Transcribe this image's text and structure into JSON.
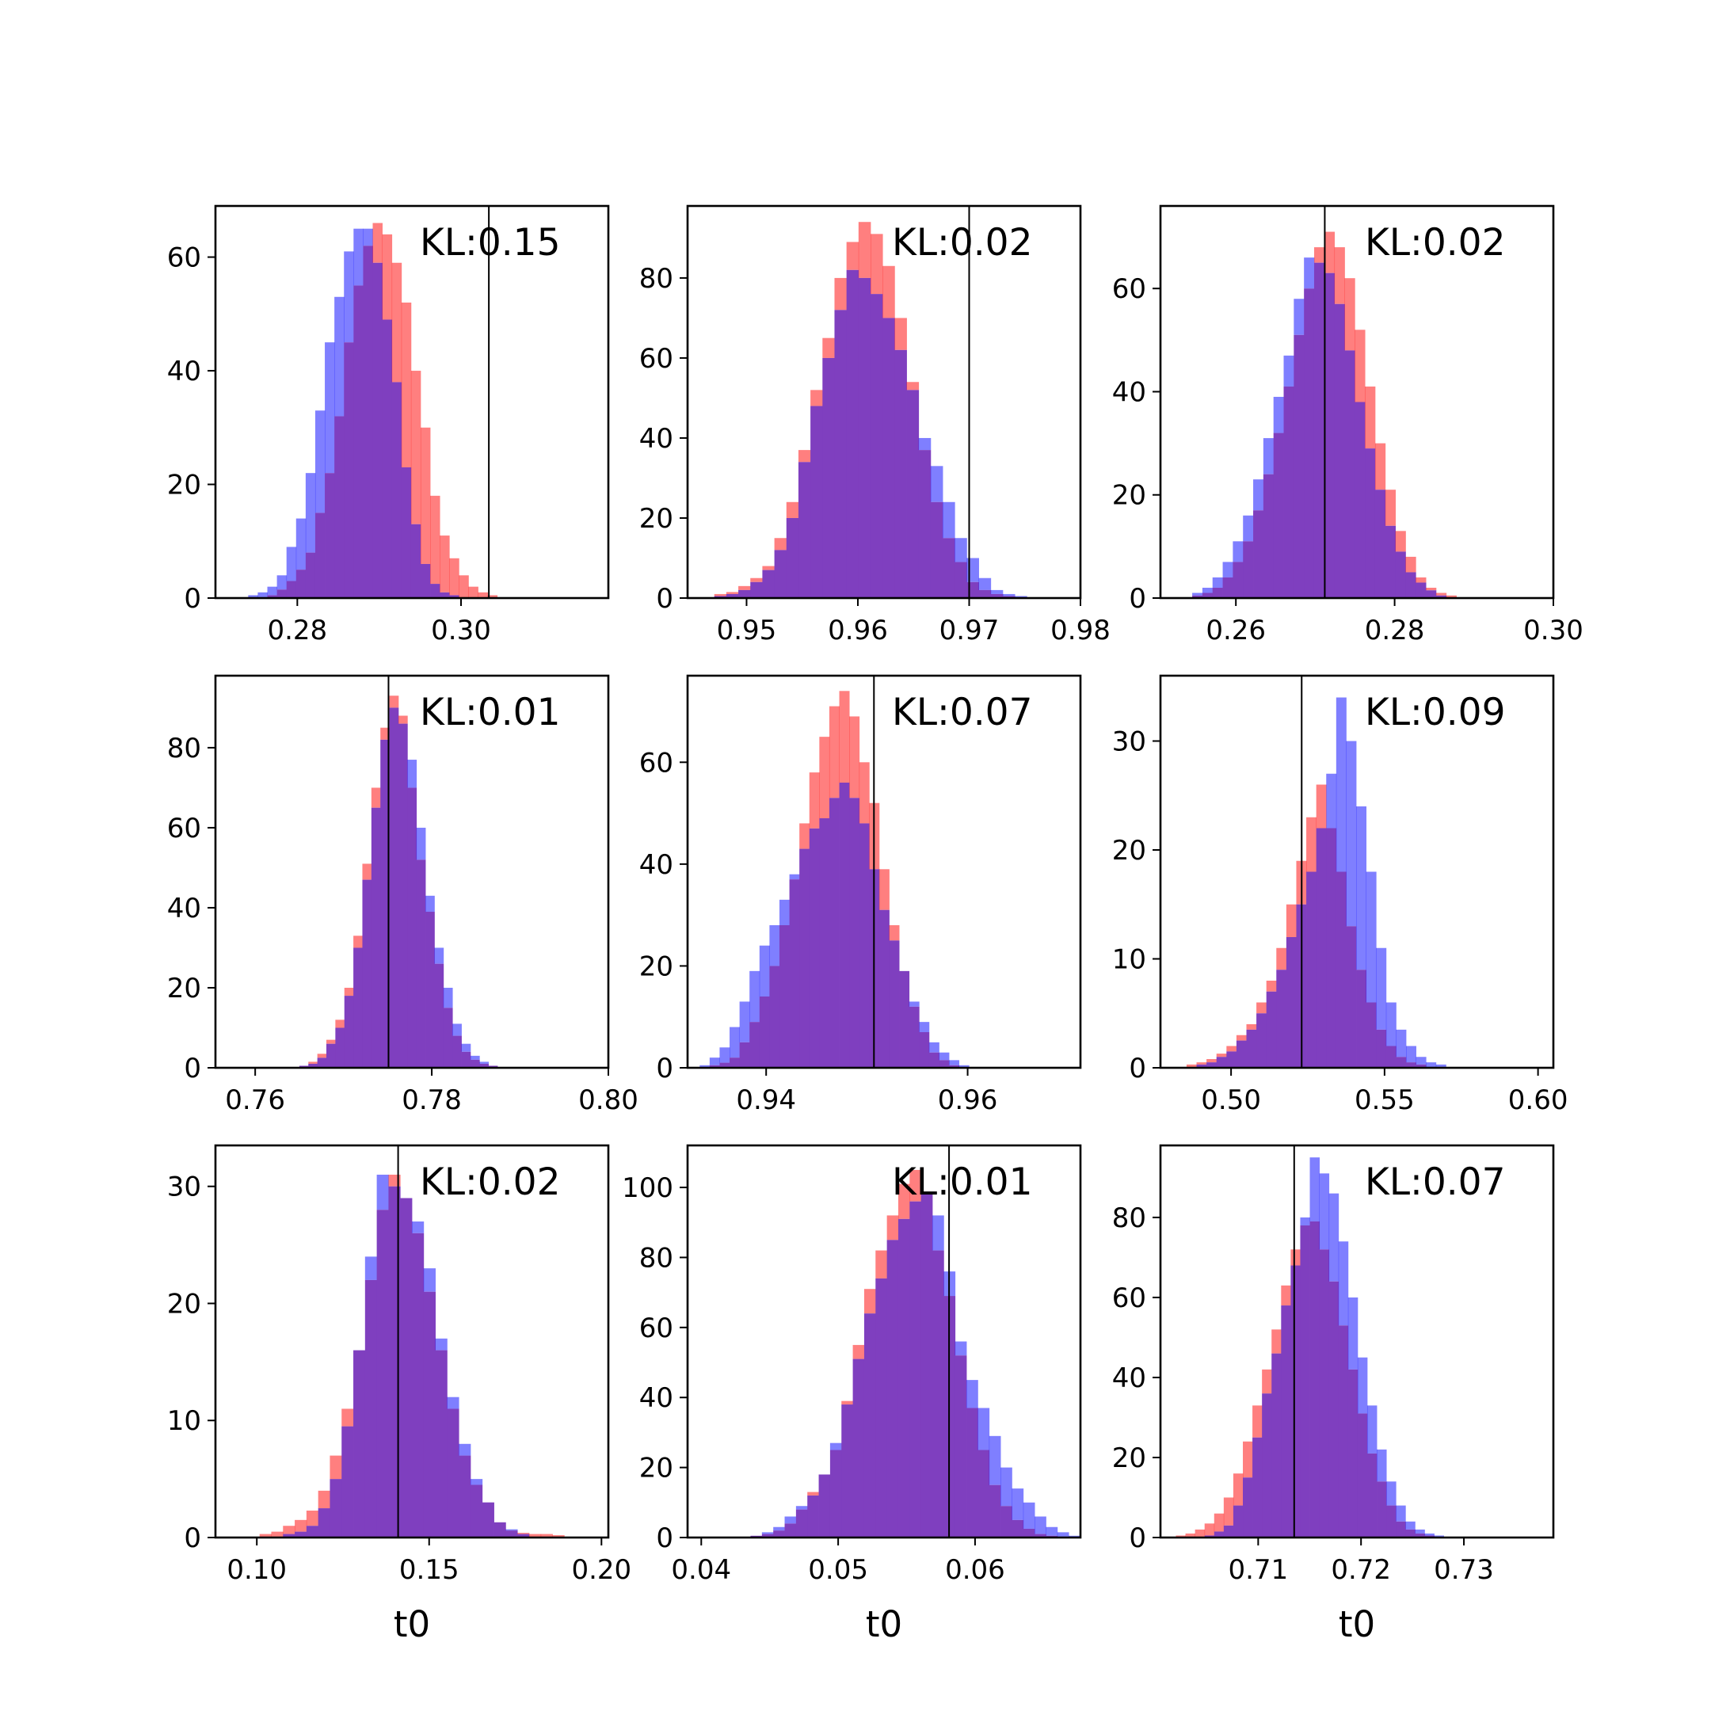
{
  "colors": {
    "red": "#ff0000",
    "blue": "#0000ff",
    "overlap": "#7f3fbf",
    "marker": "#000000",
    "frame": "#000000"
  },
  "chart_data": [
    {
      "type": "histogram",
      "kl_label": "KL:0.15",
      "xlabel": "",
      "xlim": [
        0.27,
        0.318
      ],
      "ylim": [
        0,
        69
      ],
      "xticks": [
        0.28,
        0.3
      ],
      "xtick_labels": [
        "0.28",
        "0.30"
      ],
      "yticks": [
        0,
        20,
        40,
        60
      ],
      "ytick_labels": [
        "0",
        "20",
        "40",
        "60"
      ],
      "bin_start": 0.274,
      "bin_width": 0.00117,
      "marker_x": 0.3034,
      "series": [
        {
          "color": "red",
          "values": [
            0,
            0,
            0.5,
            1.5,
            3,
            5,
            8,
            15,
            22,
            32,
            45,
            55,
            62,
            66,
            64,
            59,
            52,
            40,
            30,
            18,
            11,
            7,
            4,
            2,
            1,
            0.5
          ]
        },
        {
          "color": "blue",
          "values": [
            0.5,
            1,
            2,
            4,
            9,
            14,
            22,
            33,
            45,
            53,
            61,
            65,
            65,
            59,
            49,
            38,
            23,
            13,
            6,
            2.5,
            1,
            0.5,
            0,
            0,
            0,
            0
          ]
        }
      ]
    },
    {
      "type": "histogram",
      "kl_label": "KL:0.02",
      "xlabel": "",
      "xlim": [
        0.9447,
        0.98
      ],
      "ylim": [
        0,
        98
      ],
      "xticks": [
        0.95,
        0.96,
        0.97,
        0.98
      ],
      "xtick_labels": [
        "0.95",
        "0.96",
        "0.97",
        "0.98"
      ],
      "yticks": [
        0,
        20,
        40,
        60,
        80
      ],
      "ytick_labels": [
        "0",
        "20",
        "40",
        "60",
        "80"
      ],
      "bin_start": 0.9471,
      "bin_width": 0.00108,
      "marker_x": 0.97,
      "series": [
        {
          "color": "red",
          "values": [
            1,
            1.5,
            3,
            5,
            8,
            15,
            24,
            37,
            52,
            65,
            80,
            89,
            94,
            91,
            83,
            70,
            54,
            37,
            24,
            15,
            9,
            4,
            2,
            1,
            0.5,
            0,
            0,
            0
          ]
        },
        {
          "color": "blue",
          "values": [
            0.5,
            1,
            2,
            4,
            7,
            12,
            20,
            34,
            48,
            60,
            72,
            82,
            80,
            76,
            70,
            62,
            52,
            40,
            33,
            24,
            15,
            10,
            5,
            2,
            1,
            0.5,
            0,
            0
          ]
        }
      ]
    },
    {
      "type": "histogram",
      "kl_label": "KL:0.02",
      "xlabel": "",
      "xlim": [
        0.2505,
        0.3
      ],
      "ylim": [
        0,
        76
      ],
      "xticks": [
        0.26,
        0.28,
        0.3
      ],
      "xtick_labels": [
        "0.26",
        "0.28",
        "0.30"
      ],
      "yticks": [
        0,
        20,
        40,
        60
      ],
      "ytick_labels": [
        "0",
        "20",
        "40",
        "60"
      ],
      "bin_start": 0.2545,
      "bin_width": 0.00128,
      "marker_x": 0.2712,
      "series": [
        {
          "color": "red",
          "values": [
            0.5,
            1,
            2,
            4,
            7,
            11,
            17,
            24,
            32,
            41,
            51,
            60,
            68,
            71,
            68,
            62,
            52,
            41,
            30,
            21,
            13,
            8,
            4,
            2,
            1,
            0.5,
            0
          ]
        },
        {
          "color": "blue",
          "values": [
            1,
            2,
            4,
            7,
            11,
            16,
            23,
            31,
            39,
            47,
            58,
            66,
            65,
            63,
            57,
            48,
            38,
            29,
            21,
            14,
            9,
            5,
            3,
            1.5,
            0.5,
            0,
            0
          ]
        }
      ]
    },
    {
      "type": "histogram",
      "kl_label": "KL:0.01",
      "xlabel": "",
      "xlim": [
        0.7555,
        0.8
      ],
      "ylim": [
        0,
        98
      ],
      "xticks": [
        0.76,
        0.78,
        0.8
      ],
      "xtick_labels": [
        "0.76",
        "0.78",
        "0.80"
      ],
      "yticks": [
        0,
        20,
        40,
        60,
        80
      ],
      "ytick_labels": [
        "0",
        "20",
        "40",
        "60",
        "80"
      ],
      "bin_start": 0.765,
      "bin_width": 0.00102,
      "marker_x": 0.7751,
      "series": [
        {
          "color": "red",
          "values": [
            0.5,
            1.5,
            3.5,
            7,
            12,
            20,
            33,
            51,
            70,
            85,
            93,
            88,
            70,
            52,
            39,
            26,
            15,
            8,
            4,
            2,
            1,
            0.5,
            0,
            0,
            0
          ]
        },
        {
          "color": "blue",
          "values": [
            0.5,
            1,
            2.5,
            6,
            10,
            18,
            30,
            47,
            65,
            82,
            90,
            86,
            77,
            60,
            43,
            30,
            20,
            11,
            6,
            3,
            1.5,
            0.5,
            0,
            0,
            0
          ]
        }
      ]
    },
    {
      "type": "histogram",
      "kl_label": "KL:0.07",
      "xlabel": "",
      "xlim": [
        0.9322,
        0.9712
      ],
      "ylim": [
        0,
        77
      ],
      "xticks": [
        0.94,
        0.96
      ],
      "xtick_labels": [
        "0.94",
        "0.96"
      ],
      "yticks": [
        0,
        20,
        40,
        60
      ],
      "ytick_labels": [
        "0",
        "20",
        "40",
        "60"
      ],
      "bin_start": 0.9334,
      "bin_width": 0.00099,
      "marker_x": 0.9507,
      "series": [
        {
          "color": "red",
          "values": [
            0,
            0.5,
            1,
            2,
            5,
            9,
            14,
            20,
            28,
            37,
            48,
            58,
            65,
            71,
            74,
            69,
            60,
            52,
            39,
            28,
            19,
            12,
            7,
            3,
            1.5,
            0.5,
            0,
            0
          ]
        },
        {
          "color": "blue",
          "values": [
            0.5,
            2,
            4,
            8,
            13,
            19,
            24,
            28,
            33,
            38,
            43,
            47,
            49,
            53,
            56,
            53,
            48,
            39,
            31,
            25,
            19,
            13,
            9,
            5,
            3,
            1.5,
            0.5,
            0
          ]
        }
      ]
    },
    {
      "type": "histogram",
      "kl_label": "KL:0.09",
      "xlabel": "",
      "xlim": [
        0.477,
        0.605
      ],
      "ylim": [
        0,
        36
      ],
      "xticks": [
        0.5,
        0.55,
        0.6
      ],
      "xtick_labels": [
        "0.50",
        "0.55",
        "0.60"
      ],
      "yticks": [
        0,
        10,
        20,
        30
      ],
      "ytick_labels": [
        "0",
        "10",
        "20",
        "30"
      ],
      "bin_start": 0.4855,
      "bin_width": 0.00325,
      "marker_x": 0.523,
      "series": [
        {
          "color": "red",
          "values": [
            0.3,
            0.5,
            0.8,
            1.3,
            2,
            3,
            4,
            6,
            8,
            11,
            15,
            19,
            23,
            26,
            22,
            18,
            13,
            9,
            6,
            3.5,
            2,
            1,
            0.5,
            0.3,
            0,
            0,
            0,
            0
          ]
        },
        {
          "color": "blue",
          "values": [
            0,
            0.3,
            0.5,
            1,
            1.5,
            2.5,
            3.5,
            5,
            7,
            9,
            12,
            15,
            18,
            22,
            27,
            34,
            30,
            24,
            18,
            11,
            6,
            3.5,
            2,
            1,
            0.5,
            0.3,
            0,
            0
          ]
        }
      ]
    },
    {
      "type": "histogram",
      "kl_label": "KL:0.02",
      "xlabel": "t0",
      "xlim": [
        0.088,
        0.202
      ],
      "ylim": [
        0,
        33.5
      ],
      "xticks": [
        0.1,
        0.15,
        0.2
      ],
      "xtick_labels": [
        "0.10",
        "0.15",
        "0.20"
      ],
      "yticks": [
        0,
        10,
        20,
        30
      ],
      "ytick_labels": [
        "0",
        "10",
        "20",
        "30"
      ],
      "bin_start": 0.094,
      "bin_width": 0.0034,
      "marker_x": 0.141,
      "series": [
        {
          "color": "red",
          "values": [
            0,
            0,
            0.3,
            0.5,
            1,
            1.5,
            2.3,
            4,
            7,
            11,
            16,
            22,
            28,
            31,
            29,
            26,
            21,
            16,
            11,
            7,
            4.5,
            3,
            1.3,
            0.6,
            0.4,
            0.3,
            0.3,
            0.2,
            0,
            0
          ]
        },
        {
          "color": "blue",
          "values": [
            0,
            0,
            0,
            0,
            0.3,
            0.5,
            1,
            2.5,
            5,
            9.5,
            16,
            24,
            31,
            30,
            29,
            27,
            23,
            17,
            12,
            8,
            5,
            3,
            1.3,
            0.7,
            0.3,
            0,
            0,
            0,
            0,
            0
          ]
        }
      ]
    },
    {
      "type": "histogram",
      "kl_label": "KL:0.01",
      "xlabel": "t0",
      "xlim": [
        0.039,
        0.0677
      ],
      "ylim": [
        0,
        112
      ],
      "xticks": [
        0.04,
        0.05,
        0.06
      ],
      "xtick_labels": [
        "0.04",
        "0.05",
        "0.06"
      ],
      "yticks": [
        0,
        20,
        40,
        60,
        80,
        100
      ],
      "ytick_labels": [
        "0",
        "20",
        "40",
        "60",
        "80",
        "100"
      ],
      "bin_start": 0.0436,
      "bin_width": 0.00083,
      "marker_x": 0.0581,
      "series": [
        {
          "color": "red",
          "values": [
            0.5,
            1,
            2,
            4,
            8,
            13,
            18,
            25,
            39,
            55,
            71,
            82,
            92,
            101,
            105,
            98,
            82,
            69,
            52,
            37,
            25,
            15,
            9,
            5,
            2.5,
            1,
            0.5,
            0,
            0
          ]
        },
        {
          "color": "blue",
          "values": [
            0.5,
            1.5,
            3,
            6,
            9,
            12,
            18,
            27,
            38,
            51,
            64,
            74,
            85,
            91,
            96,
            98,
            92,
            76,
            56,
            45,
            37,
            29,
            20,
            14,
            10,
            6,
            3,
            1.5,
            0.5
          ]
        }
      ]
    },
    {
      "type": "histogram",
      "kl_label": "KL:0.07",
      "xlabel": "t0",
      "xlim": [
        0.7005,
        0.7387
      ],
      "ylim": [
        0,
        98
      ],
      "xticks": [
        0.71,
        0.72,
        0.73
      ],
      "xtick_labels": [
        "0.71",
        "0.72",
        "0.73"
      ],
      "yticks": [
        0,
        20,
        40,
        60,
        80
      ],
      "ytick_labels": [
        "0",
        "20",
        "40",
        "60",
        "80"
      ],
      "bin_start": 0.702,
      "bin_width": 0.00093,
      "marker_x": 0.7135,
      "series": [
        {
          "color": "red",
          "values": [
            0.5,
            1,
            2,
            3.5,
            6,
            10,
            16,
            24,
            33,
            42,
            52,
            63,
            72,
            78,
            79,
            72,
            64,
            53,
            42,
            31,
            21,
            14,
            8,
            4,
            2,
            1,
            0.5,
            0,
            0,
            0,
            0,
            0,
            0,
            0,
            0,
            0,
            0,
            0,
            0
          ]
        },
        {
          "color": "blue",
          "values": [
            0,
            0,
            0,
            0.5,
            1.5,
            3,
            8,
            15,
            25,
            36,
            46,
            58,
            68,
            80,
            95,
            91,
            86,
            74,
            60,
            45,
            33,
            22,
            14,
            8,
            4,
            2,
            1,
            0.5,
            0,
            0,
            0,
            0,
            0,
            0,
            0,
            0,
            0,
            0,
            0
          ]
        }
      ]
    }
  ]
}
